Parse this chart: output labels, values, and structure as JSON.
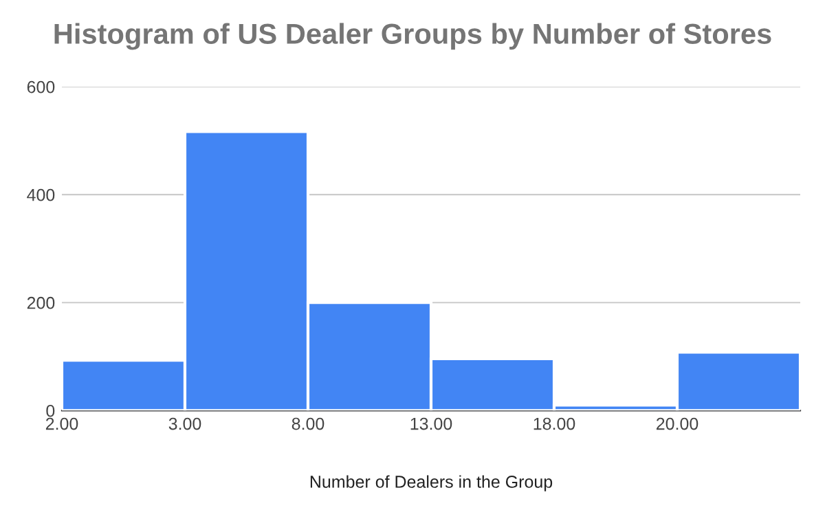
{
  "chart_data": {
    "type": "bar",
    "title": "Histogram of US Dealer Groups by Number of Stores",
    "xlabel": "Number of Dealers in the Group",
    "categories": [
      "2.00",
      "3.00",
      "8.00",
      "13.00",
      "18.00",
      "20.00"
    ],
    "values": [
      93,
      517,
      200,
      96,
      10,
      108
    ],
    "color": "#4285f4",
    "ylim": [
      0,
      600
    ],
    "yticks": [
      0,
      200,
      400,
      600
    ],
    "grid": "y"
  }
}
